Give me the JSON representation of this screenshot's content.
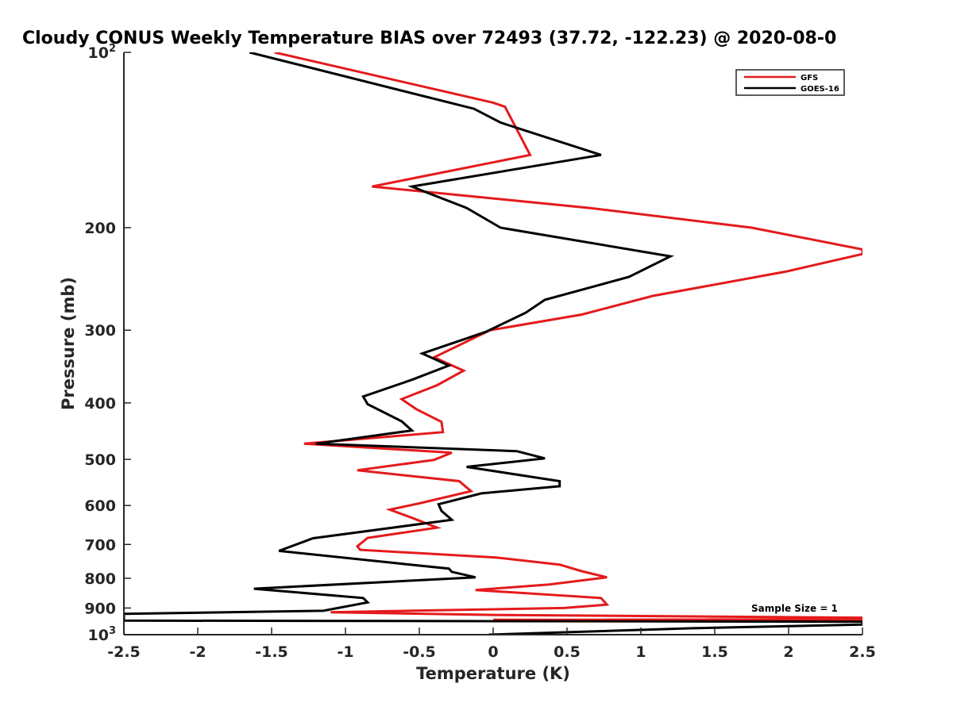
{
  "chart_data": {
    "type": "line",
    "title": "Cloudy CONUS Weekly Temperature BIAS over 72493 (37.72, -122.23) @ 2020-08-0",
    "xlabel": "Temperature (K)",
    "ylabel": "Pressure (mb)",
    "xlim": [
      -2.5,
      2.5
    ],
    "ylim": [
      100,
      1000
    ],
    "y_scale": "log",
    "y_reversed": true,
    "grid": false,
    "legend_position": "top-right",
    "x_ticks": [
      {
        "value": -2.5,
        "label": "-2.5"
      },
      {
        "value": -2,
        "label": "-2"
      },
      {
        "value": -1.5,
        "label": "-1.5"
      },
      {
        "value": -1,
        "label": "-1"
      },
      {
        "value": -0.5,
        "label": "-0.5"
      },
      {
        "value": 0,
        "label": "0"
      },
      {
        "value": 0.5,
        "label": "0.5"
      },
      {
        "value": 1,
        "label": "1"
      },
      {
        "value": 1.5,
        "label": "1.5"
      },
      {
        "value": 2,
        "label": "2"
      },
      {
        "value": 2.5,
        "label": "2.5"
      }
    ],
    "y_ticks": [
      {
        "value": 100,
        "base": "10",
        "exp": "2"
      },
      {
        "value": 200,
        "base": "200",
        "exp": ""
      },
      {
        "value": 300,
        "base": "300",
        "exp": ""
      },
      {
        "value": 400,
        "base": "400",
        "exp": ""
      },
      {
        "value": 500,
        "base": "500",
        "exp": ""
      },
      {
        "value": 600,
        "base": "600",
        "exp": ""
      },
      {
        "value": 700,
        "base": "700",
        "exp": ""
      },
      {
        "value": 800,
        "base": "800",
        "exp": ""
      },
      {
        "value": 900,
        "base": "900",
        "exp": ""
      },
      {
        "value": 1000,
        "base": "10",
        "exp": "3"
      }
    ],
    "annotation": "Sample Size = 1",
    "series": [
      {
        "name": "GFS",
        "color": "#e41a1c",
        "points": [
          [
            -1.48,
            100
          ],
          [
            0.0,
            122
          ],
          [
            0.08,
            124
          ],
          [
            0.25,
            150
          ],
          [
            -0.82,
            170
          ],
          [
            0.65,
            185
          ],
          [
            1.75,
            200
          ],
          [
            2.5,
            218
          ],
          [
            2.5,
            222
          ],
          [
            1.98,
            238
          ],
          [
            1.08,
            262
          ],
          [
            0.6,
            282
          ],
          [
            -0.02,
            300
          ],
          [
            -0.4,
            334
          ],
          [
            -0.2,
            352
          ],
          [
            -0.38,
            373
          ],
          [
            -0.62,
            394
          ],
          [
            -0.52,
            410
          ],
          [
            -0.35,
            431
          ],
          [
            -0.34,
            449
          ],
          [
            -1.28,
            470
          ],
          [
            -0.28,
            487
          ],
          [
            -0.4,
            501
          ],
          [
            -0.92,
            522
          ],
          [
            -0.23,
            545
          ],
          [
            -0.15,
            567
          ],
          [
            -0.5,
            595
          ],
          [
            -0.7,
            610
          ],
          [
            -0.55,
            630
          ],
          [
            -0.38,
            655
          ],
          [
            -0.85,
            682
          ],
          [
            -0.92,
            705
          ],
          [
            -0.9,
            715
          ],
          [
            0.02,
            737
          ],
          [
            0.45,
            758
          ],
          [
            0.6,
            778
          ],
          [
            0.77,
            797
          ],
          [
            0.38,
            820
          ],
          [
            -0.12,
            838
          ],
          [
            0.73,
            865
          ],
          [
            0.77,
            888
          ],
          [
            0.48,
            900
          ],
          [
            -1.1,
            915
          ],
          [
            0.0,
            925
          ],
          [
            2.5,
            935
          ],
          [
            2.5,
            941
          ],
          [
            0.0,
            943
          ]
        ]
      },
      {
        "name": "GOES-16",
        "color": "#000000",
        "points": [
          [
            -1.65,
            100
          ],
          [
            -0.13,
            125
          ],
          [
            0.05,
            132
          ],
          [
            0.73,
            150
          ],
          [
            -0.55,
            170
          ],
          [
            -0.45,
            174
          ],
          [
            -0.18,
            185
          ],
          [
            0.05,
            200
          ],
          [
            1.2,
            224
          ],
          [
            0.92,
            243
          ],
          [
            0.35,
            266
          ],
          [
            0.22,
            280
          ],
          [
            -0.05,
            302
          ],
          [
            -0.48,
            329
          ],
          [
            -0.3,
            345
          ],
          [
            -0.55,
            365
          ],
          [
            -0.88,
            390
          ],
          [
            -0.85,
            402
          ],
          [
            -0.62,
            430
          ],
          [
            -0.55,
            446
          ],
          [
            -1.2,
            470
          ],
          [
            0.16,
            484
          ],
          [
            0.35,
            498
          ],
          [
            -0.18,
            515
          ],
          [
            0.45,
            545
          ],
          [
            0.45,
            556
          ],
          [
            -0.08,
            572
          ],
          [
            -0.37,
            597
          ],
          [
            -0.35,
            613
          ],
          [
            -0.28,
            635
          ],
          [
            -1.22,
            683
          ],
          [
            -1.45,
            718
          ],
          [
            -0.63,
            755
          ],
          [
            -0.3,
            770
          ],
          [
            -0.28,
            780
          ],
          [
            -0.12,
            797
          ],
          [
            -1.62,
            834
          ],
          [
            -0.88,
            865
          ],
          [
            -0.85,
            880
          ],
          [
            -1.15,
            910
          ],
          [
            -2.5,
            921
          ],
          [
            -2.5,
            946
          ],
          [
            2.5,
            950
          ],
          [
            2.5,
            961
          ],
          [
            1.35,
            975
          ],
          [
            -0.03,
            1000
          ]
        ]
      }
    ]
  }
}
